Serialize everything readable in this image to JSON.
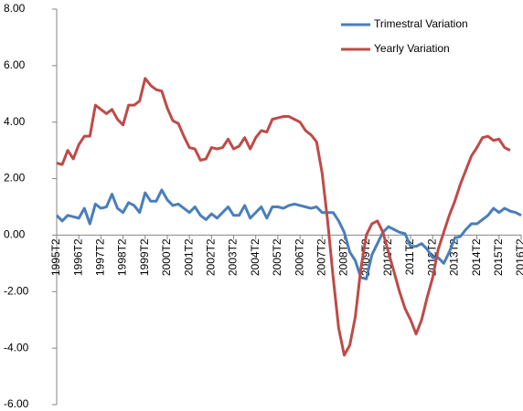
{
  "chart_data": {
    "type": "line",
    "categories": [
      "1995T2",
      null,
      null,
      null,
      "1996T2",
      null,
      null,
      null,
      "1997T2",
      null,
      null,
      null,
      "1998T2",
      null,
      null,
      null,
      "1999T2",
      null,
      null,
      null,
      "2000T2",
      null,
      null,
      null,
      "2001T2",
      null,
      null,
      null,
      "2002T2",
      null,
      null,
      null,
      "2003T2",
      null,
      null,
      null,
      "2004T2",
      null,
      null,
      null,
      "2005T2",
      null,
      null,
      null,
      "2006T2",
      null,
      null,
      null,
      "2007T2",
      null,
      null,
      null,
      "2008T2",
      null,
      null,
      null,
      "2009T2",
      null,
      null,
      null,
      "2010T2",
      null,
      null,
      null,
      "2011T2",
      null,
      null,
      null,
      "2012T2",
      null,
      null,
      null,
      "2013T2",
      null,
      null,
      null,
      "2014T2",
      null,
      null,
      null,
      "2015T2",
      null,
      null,
      null,
      "2016T2"
    ],
    "series": [
      {
        "name": "Trimestral Variation",
        "color": "#4a7ebb",
        "values": [
          0.7,
          0.5,
          0.7,
          0.65,
          0.6,
          0.95,
          0.4,
          1.1,
          0.95,
          1.0,
          1.45,
          0.95,
          0.8,
          1.15,
          1.05,
          0.8,
          1.5,
          1.2,
          1.2,
          1.6,
          1.25,
          1.05,
          1.1,
          0.95,
          0.8,
          1.0,
          0.7,
          0.55,
          0.75,
          0.6,
          0.8,
          1.0,
          0.7,
          0.7,
          1.05,
          0.6,
          0.8,
          1.0,
          0.6,
          1.0,
          1.0,
          0.95,
          1.05,
          1.1,
          1.05,
          1.0,
          0.95,
          1.0,
          0.8,
          0.8,
          0.8,
          0.5,
          0.1,
          -0.6,
          -0.9,
          -1.5,
          -1.55,
          -0.7,
          -0.3,
          0.1,
          0.3,
          0.2,
          0.1,
          0.05,
          -0.4,
          -0.4,
          -0.3,
          -0.5,
          -0.8,
          -0.8,
          -1.0,
          -0.6,
          -0.1,
          -0.05,
          0.2,
          0.4,
          0.4,
          0.55,
          0.7,
          0.95,
          0.8,
          0.95,
          0.85,
          0.8,
          0.7
        ]
      },
      {
        "name": "Yearly Variation",
        "color": "#be4b48",
        "values": [
          2.55,
          2.5,
          3.0,
          2.7,
          3.2,
          3.5,
          3.5,
          4.6,
          4.45,
          4.3,
          4.45,
          4.1,
          3.9,
          4.6,
          4.6,
          4.75,
          5.55,
          5.3,
          5.15,
          5.1,
          4.5,
          4.05,
          3.95,
          3.5,
          3.1,
          3.05,
          2.65,
          2.7,
          3.1,
          3.05,
          3.1,
          3.4,
          3.05,
          3.15,
          3.45,
          3.05,
          3.45,
          3.7,
          3.65,
          4.1,
          4.15,
          4.2,
          4.2,
          4.1,
          4.0,
          3.7,
          3.55,
          3.3,
          2.2,
          0.5,
          -1.5,
          -3.3,
          -4.25,
          -3.9,
          -2.9,
          -1.2,
          0.0,
          0.4,
          0.5,
          0.1,
          -0.6,
          -1.3,
          -2.0,
          -2.6,
          -3.0,
          -3.5,
          -3.0,
          -2.2,
          -1.5,
          -0.5,
          0.1,
          0.7,
          1.2,
          1.8,
          2.3,
          2.8,
          3.1,
          3.45,
          3.5,
          3.35,
          3.4,
          3.1,
          3.0,
          null,
          null
        ]
      }
    ],
    "ylim": [
      -6,
      8
    ],
    "yticks": [
      {
        "value": -6,
        "label": "-6.00"
      },
      {
        "value": -4,
        "label": "-4.00"
      },
      {
        "value": -2,
        "label": "-2.00"
      },
      {
        "value": 0,
        "label": "0.00"
      },
      {
        "value": 2,
        "label": "2.00"
      },
      {
        "value": 4,
        "label": "4.00"
      },
      {
        "value": 6,
        "label": "6.00"
      },
      {
        "value": 8,
        "label": "8.00"
      }
    ],
    "grid": false,
    "legend": "top-right"
  }
}
